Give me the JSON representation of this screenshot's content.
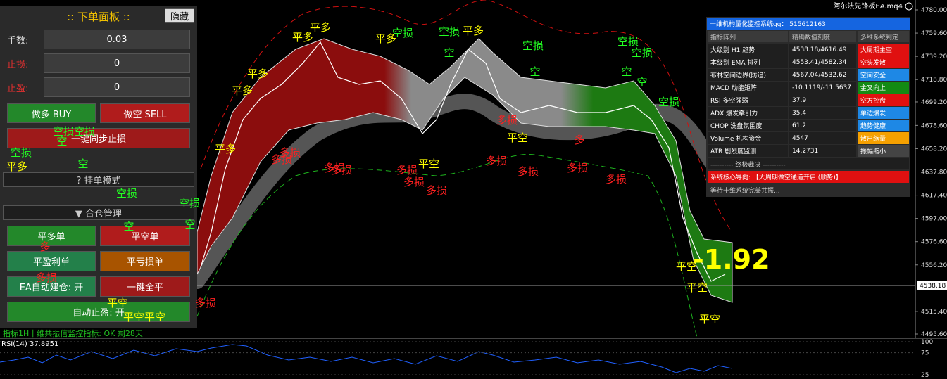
{
  "window_title": "阿尔法先锋板EA.mq4",
  "panel": {
    "title": ":: 下单面板 ::",
    "hide_button": "隐藏",
    "fields": [
      {
        "label": "手数:",
        "value": "0.03"
      },
      {
        "label": "止损:",
        "value": "0"
      },
      {
        "label": "止盈:",
        "value": "0"
      }
    ],
    "buy": "做多  BUY",
    "sell": "做空  SELL",
    "sync_sl": "一键同步止损",
    "pending": "? 挂单模式",
    "merge": "▼ 合仓管理",
    "close_long": "平多单",
    "close_short": "平空单",
    "close_profit": "平盈利单",
    "close_loss": "平亏损单",
    "auto_open": "EA自动建仓: 开",
    "close_all": "一键全平",
    "auto_tp": "自动止盈: 开"
  },
  "status_line": "指标1H十维共振信监控指标: OK 剩28天",
  "price_axis": {
    "ticks": [
      {
        "value": 4780,
        "label": "4780.00"
      },
      {
        "value": 4759.6,
        "label": "4759.60"
      },
      {
        "value": 4739.2,
        "label": "4739.20"
      },
      {
        "value": 4718.8,
        "label": "4718.80"
      },
      {
        "value": 4699.2,
        "label": "4699.20"
      },
      {
        "value": 4678.6,
        "label": "4678.60"
      },
      {
        "value": 4658.2,
        "label": "4658.20"
      },
      {
        "value": 4637.8,
        "label": "4637.80"
      },
      {
        "value": 4617.4,
        "label": "4617.40"
      },
      {
        "value": 4597,
        "label": "4597.00"
      },
      {
        "value": 4576.6,
        "label": "4576.60"
      },
      {
        "value": 4556.2,
        "label": "4556.20"
      },
      {
        "value": 4515.4,
        "label": "4515.40"
      },
      {
        "value": 4495.6,
        "label": "4495.60"
      }
    ],
    "current_price": 4538.18
  },
  "pnl": "-1.92",
  "monitor": {
    "title": "十维机构量化监控系统qq： 515612163",
    "headers": [
      "指标阵列",
      "精确数值刻度",
      "多维系统判定"
    ],
    "rows": [
      [
        "大级别 H1 趋势",
        "4538.18/4616.49",
        "大周期主空"
      ],
      [
        "本级别 EMA 排列",
        "4553.41/4582.34",
        "空头发散"
      ],
      [
        "布林空间边界(防追)",
        "4567.04/4532.62",
        "空间安全"
      ],
      [
        "MACD 动能矩阵",
        "-10.1119/-11.5637",
        "金叉向上"
      ],
      [
        "RSI 多空强弱",
        "37.9",
        "空方控盘"
      ],
      [
        "ADX 爆发牵引力",
        "35.4",
        "单边爆发"
      ],
      [
        "CHOP 洗盘氛围度",
        "61.2",
        "趋势健康"
      ],
      [
        "Volume 机构资金",
        "4547",
        "散户缩量"
      ],
      [
        "ATR 剧烈度监测",
        "14.2731",
        "振幅缩小"
      ]
    ],
    "status_colors": [
      "#e01010",
      "#e01010",
      "#1e88e5",
      "#138a13",
      "#e01010",
      "#1e88e5",
      "#1e88e5",
      "#f5a000",
      "#444444"
    ],
    "verdict_title": "---------- 终极裁决 ----------",
    "verdict": "系统核心导向: 【大周期做空通道开启 (顺势)】",
    "footer": "等待十维系统完美共振..."
  },
  "rsi": {
    "label": "RSI(14) 37.8951",
    "ticks": [
      100,
      75,
      25
    ]
  },
  "annotations": [
    {
      "text": "平多",
      "color": "#ffff00"
    },
    {
      "text": "平多",
      "color": "#ffff00"
    },
    {
      "text": "空损",
      "color": "#22ff22"
    },
    {
      "text": "平多",
      "color": "#ffff00"
    },
    {
      "text": "空损",
      "color": "#22ff22"
    },
    {
      "text": "平多",
      "color": "#ffff00"
    },
    {
      "text": "空损",
      "color": "#22ff22"
    },
    {
      "text": "空损",
      "color": "#22ff22"
    },
    {
      "text": "空损",
      "color": "#22ff22"
    },
    {
      "text": "空",
      "color": "#22ff22"
    },
    {
      "text": "平多",
      "color": "#ffff00"
    },
    {
      "text": "平多",
      "color": "#ffff00"
    },
    {
      "text": "空",
      "color": "#22ff22"
    },
    {
      "text": "空",
      "color": "#22ff22"
    },
    {
      "text": "空",
      "color": "#22ff22"
    },
    {
      "text": "空损",
      "color": "#22ff22"
    },
    {
      "text": "平多",
      "color": "#ffff00"
    },
    {
      "text": "多损",
      "color": "#ff2020"
    },
    {
      "text": "多损",
      "color": "#ff2020"
    },
    {
      "text": "多损",
      "color": "#ff2020"
    },
    {
      "text": "多损",
      "color": "#ff2020"
    },
    {
      "text": "多损",
      "color": "#ff2020"
    },
    {
      "text": "多损",
      "color": "#ff2020"
    },
    {
      "text": "多损",
      "color": "#ff2020"
    },
    {
      "text": "平空",
      "color": "#ffff00"
    },
    {
      "text": "平空",
      "color": "#ffff00"
    },
    {
      "text": "多损",
      "color": "#ff2020"
    },
    {
      "text": "多损",
      "color": "#ff2020"
    },
    {
      "text": "多",
      "color": "#ff2020"
    },
    {
      "text": "多损",
      "color": "#ff2020"
    },
    {
      "text": "多损",
      "color": "#ff2020"
    },
    {
      "text": "多损",
      "color": "#ff2020"
    },
    {
      "text": "空损",
      "color": "#22ff22"
    },
    {
      "text": "空损",
      "color": "#22ff22"
    },
    {
      "text": "空",
      "color": "#22ff22"
    },
    {
      "text": "空",
      "color": "#22ff22"
    },
    {
      "text": "多",
      "color": "#ff2020"
    },
    {
      "text": "多损",
      "color": "#ff2020"
    },
    {
      "text": "多损",
      "color": "#ff2020"
    },
    {
      "text": "平空",
      "color": "#ffff00"
    },
    {
      "text": "平空",
      "color": "#ffff00"
    },
    {
      "text": "平空",
      "color": "#ffff00"
    },
    {
      "text": "平空",
      "color": "#ffff00"
    },
    {
      "text": "平空平空",
      "color": "#ffff00"
    },
    {
      "text": "空损空损",
      "color": "#22ff22"
    },
    {
      "text": "空",
      "color": "#22ff22"
    },
    {
      "text": "空损",
      "color": "#22ff22"
    },
    {
      "text": "空",
      "color": "#22ff22"
    },
    {
      "text": "平多",
      "color": "#ffff00"
    }
  ]
}
